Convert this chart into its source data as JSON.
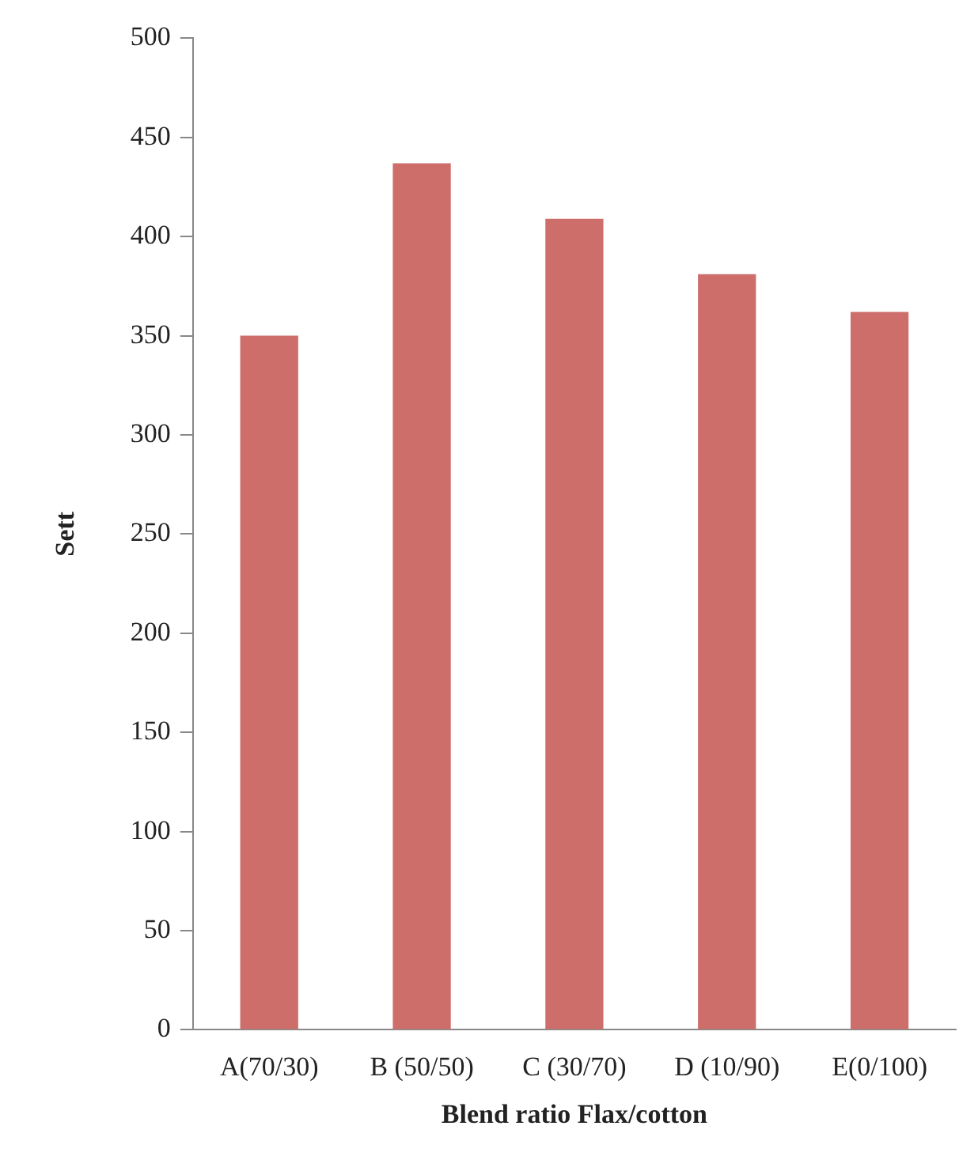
{
  "chart_data": {
    "type": "bar",
    "xlabel": "Blend ratio Flax/cotton",
    "ylabel": "Sett",
    "categories": [
      "A(70/30)",
      "B (50/50)",
      "C (30/70)",
      "D (10/90)",
      "E(0/100)"
    ],
    "values": [
      350,
      437,
      409,
      381,
      362
    ],
    "color": "#cd6e6b",
    "ylim": [
      0,
      500
    ],
    "yticks": [
      0,
      50,
      100,
      150,
      200,
      250,
      300,
      350,
      400,
      450,
      500
    ],
    "grid": false,
    "legend": false
  }
}
